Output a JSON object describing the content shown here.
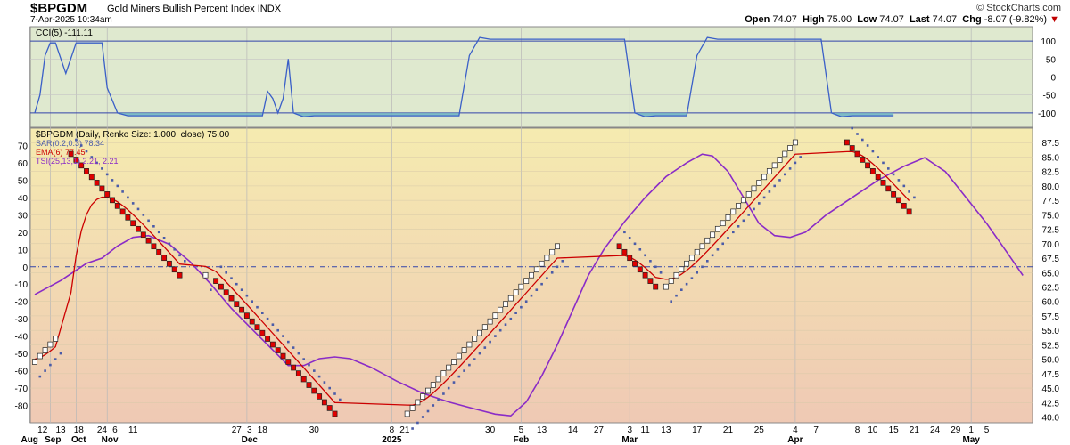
{
  "header": {
    "symbol": "$BPGDM",
    "name": "Gold Miners Bullish Percent Index",
    "exchange": "INDX",
    "datetime": "7-Apr-2025 10:34am",
    "brand": "© StockCharts.com",
    "open_label": "Open",
    "open": "74.07",
    "high_label": "High",
    "high": "75.00",
    "low_label": "Low",
    "low": "74.07",
    "last_label": "Last",
    "last": "74.07",
    "chg_label": "Chg",
    "chg": "-8.07 (-9.82%)",
    "chg_arrow": "▼"
  },
  "colors": {
    "cci_bg": "#dfe9cf",
    "main_bg_top": "#f5ebb0",
    "main_bg_bottom": "#efc9b4",
    "cci_line": "#3a5fc8",
    "cci_fill": "#6fb3c3",
    "ema": "#cc0000",
    "tsi": "#8a2bc7",
    "sar": "#4a5ba8",
    "brick_up": "#ffffff",
    "brick_down": "#e00000",
    "ref_line": "#3344aa"
  },
  "chart_data": [
    {
      "type": "line",
      "panel": "upper",
      "legend": "CCI(5) -111.11",
      "ylim": [
        -140,
        140
      ],
      "yticks": [
        100,
        50,
        0,
        -50,
        -100
      ],
      "reference_lines": [
        100,
        0,
        -100
      ],
      "grid": true,
      "series": [
        {
          "name": "CCI(5)",
          "points": [
            [
              0,
              -100
            ],
            [
              1,
              -50
            ],
            [
              2,
              60
            ],
            [
              3,
              95
            ],
            [
              4,
              95
            ],
            [
              6,
              10
            ],
            [
              8,
              95
            ],
            [
              10,
              95
            ],
            [
              12,
              95
            ],
            [
              13,
              95
            ],
            [
              14,
              -30
            ],
            [
              16,
              -100
            ],
            [
              18,
              -108
            ],
            [
              22,
              -108
            ],
            [
              40,
              -108
            ],
            [
              44,
              -108
            ],
            [
              45,
              -40
            ],
            [
              46,
              -60
            ],
            [
              47,
              -100
            ],
            [
              48,
              -60
            ],
            [
              49,
              50
            ],
            [
              50,
              -100
            ],
            [
              52,
              -111
            ],
            [
              54,
              -108
            ],
            [
              80,
              -108
            ],
            [
              82,
              -108
            ],
            [
              84,
              60
            ],
            [
              86,
              110
            ],
            [
              88,
              105
            ],
            [
              110,
              105
            ],
            [
              114,
              105
            ],
            [
              116,
              -100
            ],
            [
              118,
              -111
            ],
            [
              120,
              -108
            ],
            [
              126,
              -108
            ],
            [
              128,
              60
            ],
            [
              130,
              110
            ],
            [
              132,
              105
            ],
            [
              150,
              105
            ],
            [
              152,
              105
            ],
            [
              154,
              -100
            ],
            [
              156,
              -111
            ],
            [
              158,
              -108
            ],
            [
              165,
              -108
            ],
            [
              166,
              -108
            ]
          ]
        }
      ]
    },
    {
      "type": "renko",
      "panel": "main",
      "legend": [
        "$BPGDM (Daily, Renko Size: 1.000, close) 75.00",
        "SAR(0.2,0.3) 78.34",
        "EMA(6) 77.45",
        "TSI(25,13,1) 2.21, 2.21"
      ],
      "ylim": [
        39,
        90
      ],
      "yticks_right": [
        "87.5",
        "85.0",
        "82.5",
        "80.0",
        "77.5",
        "75.0",
        "72.5",
        "70.0",
        "67.5",
        "65.0",
        "62.5",
        "60.0",
        "57.5",
        "55.0",
        "52.5",
        "50.0",
        "47.5",
        "45.0",
        "42.5",
        "40.0"
      ],
      "tsi_ylim": [
        -90,
        80
      ],
      "yticks_left": [
        "70",
        "60",
        "50",
        "40",
        "30",
        "20",
        "10",
        "0",
        "-10",
        "-20",
        "-30",
        "-40",
        "-50",
        "-60",
        "-70",
        "-80"
      ],
      "reference_lines": [
        {
          "tsi": 0,
          "axis": "left"
        }
      ],
      "bricks": [
        {
          "from": 0,
          "dir": "up",
          "start": 49,
          "count": 5
        },
        {
          "from": 7,
          "dir": "down",
          "start": 86,
          "count": 22
        },
        {
          "from": 33,
          "dir": "up",
          "start": 64,
          "count": 1
        },
        {
          "from": 35,
          "dir": "down",
          "start": 64,
          "count": 24
        },
        {
          "from": 72,
          "dir": "up",
          "start": 40,
          "count": 30
        },
        {
          "from": 113,
          "dir": "down",
          "start": 70,
          "count": 8
        },
        {
          "from": 122,
          "dir": "up",
          "start": 62,
          "count": 26
        },
        {
          "from": 157,
          "dir": "down",
          "start": 88,
          "count": 13
        }
      ],
      "ema_label": "EMA(6)",
      "tsi_label": "TSI(25,13,1)",
      "tsi_points": [
        [
          0,
          -16
        ],
        [
          5,
          -8
        ],
        [
          8,
          -2
        ],
        [
          10,
          2
        ],
        [
          13,
          5
        ],
        [
          16,
          12
        ],
        [
          19,
          17
        ],
        [
          22,
          18
        ],
        [
          26,
          13
        ],
        [
          30,
          3
        ],
        [
          34,
          -10
        ],
        [
          38,
          -24
        ],
        [
          42,
          -36
        ],
        [
          46,
          -48
        ],
        [
          49,
          -57
        ],
        [
          52,
          -57
        ],
        [
          55,
          -53
        ],
        [
          58,
          -52
        ],
        [
          61,
          -53
        ],
        [
          65,
          -58
        ],
        [
          70,
          -66
        ],
        [
          75,
          -73
        ],
        [
          80,
          -78
        ],
        [
          85,
          -82
        ],
        [
          89,
          -85
        ],
        [
          92,
          -86
        ],
        [
          95,
          -78
        ],
        [
          98,
          -63
        ],
        [
          101,
          -45
        ],
        [
          104,
          -25
        ],
        [
          107,
          -5
        ],
        [
          110,
          10
        ],
        [
          114,
          26
        ],
        [
          118,
          40
        ],
        [
          122,
          52
        ],
        [
          126,
          60
        ],
        [
          129,
          65
        ],
        [
          131,
          64
        ],
        [
          134,
          55
        ],
        [
          137,
          40
        ],
        [
          140,
          25
        ],
        [
          143,
          18
        ],
        [
          146,
          17
        ],
        [
          149,
          20
        ],
        [
          153,
          30
        ],
        [
          158,
          40
        ],
        [
          163,
          50
        ],
        [
          168,
          58
        ],
        [
          172,
          63
        ],
        [
          176,
          55
        ],
        [
          180,
          40
        ],
        [
          184,
          25
        ],
        [
          188,
          8
        ],
        [
          191,
          -5
        ]
      ]
    }
  ],
  "x_axis": {
    "labels": [
      {
        "i": 1.5,
        "text": "12"
      },
      {
        "i": 5,
        "text": "13"
      },
      {
        "i": 8.5,
        "text": "18"
      },
      {
        "i": 13,
        "text": "24"
      },
      {
        "i": 15.5,
        "text": "6"
      },
      {
        "i": 19,
        "text": "11"
      },
      {
        "i": 39,
        "text": "27"
      },
      {
        "i": 41.5,
        "text": "3"
      },
      {
        "i": 44,
        "text": "18"
      },
      {
        "i": 54,
        "text": "30"
      },
      {
        "i": 69,
        "text": "8"
      },
      {
        "i": 71.5,
        "text": "21"
      },
      {
        "i": 88,
        "text": "30"
      },
      {
        "i": 94,
        "text": "5"
      },
      {
        "i": 98,
        "text": "13"
      },
      {
        "i": 104,
        "text": "14"
      },
      {
        "i": 109,
        "text": "27"
      },
      {
        "i": 115,
        "text": "3"
      },
      {
        "i": 118,
        "text": "11"
      },
      {
        "i": 122,
        "text": "13"
      },
      {
        "i": 128,
        "text": "17"
      },
      {
        "i": 134,
        "text": "21"
      },
      {
        "i": 140,
        "text": "25"
      },
      {
        "i": 147,
        "text": "4"
      },
      {
        "i": 151,
        "text": "7"
      },
      {
        "i": 159,
        "text": "8"
      },
      {
        "i": 162,
        "text": "10"
      },
      {
        "i": 166,
        "text": "15"
      },
      {
        "i": 170,
        "text": "21"
      },
      {
        "i": 174,
        "text": "24"
      },
      {
        "i": 178,
        "text": "29"
      },
      {
        "i": 181,
        "text": "1"
      },
      {
        "i": 184,
        "text": "5"
      }
    ],
    "bold_labels": [
      {
        "i": -1,
        "text": "Aug"
      },
      {
        "i": 3.5,
        "text": "Sep"
      },
      {
        "i": 8.5,
        "text": "Oct"
      },
      {
        "i": 14.5,
        "text": "Nov"
      },
      {
        "i": 41.5,
        "text": "Dec"
      },
      {
        "i": 69,
        "text": "2025"
      },
      {
        "i": 94,
        "text": "Feb"
      },
      {
        "i": 115,
        "text": "Mar"
      },
      {
        "i": 147,
        "text": "Apr"
      },
      {
        "i": 181,
        "text": "May"
      }
    ],
    "vlines": [
      -1,
      3,
      8,
      14,
      41,
      69,
      94,
      115,
      147,
      181
    ]
  }
}
